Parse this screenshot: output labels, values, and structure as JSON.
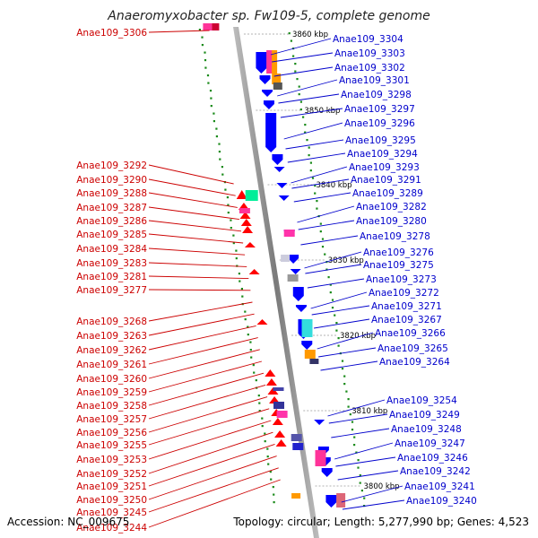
{
  "title": "Anaeromyxobacter sp. Fw109-5, complete genome",
  "footer": {
    "accession": "Accession: NC_009675",
    "summary": "Topology: circular; Length: 5,277,990 bp; Genes: 4,523"
  },
  "scale_labels": [
    "3860 kbp",
    "3850 kbp",
    "3840 kbp",
    "3830 kbp",
    "3820 kbp",
    "3810 kbp",
    "3800 kbp"
  ],
  "left_genes": [
    "Anae109_3306",
    "Anae109_3292",
    "Anae109_3290",
    "Anae109_3288",
    "Anae109_3287",
    "Anae109_3286",
    "Anae109_3285",
    "Anae109_3284",
    "Anae109_3283",
    "Anae109_3281",
    "Anae109_3277",
    "Anae109_3268",
    "Anae109_3263",
    "Anae109_3262",
    "Anae109_3261",
    "Anae109_3260",
    "Anae109_3259",
    "Anae109_3258",
    "Anae109_3257",
    "Anae109_3256",
    "Anae109_3255",
    "Anae109_3253",
    "Anae109_3252",
    "Anae109_3251",
    "Anae109_3250",
    "Anae109_3245",
    "Anae109_3244"
  ],
  "right_genes": [
    "Anae109_3304",
    "Anae109_3303",
    "Anae109_3302",
    "Anae109_3301",
    "Anae109_3298",
    "Anae109_3297",
    "Anae109_3296",
    "Anae109_3295",
    "Anae109_3294",
    "Anae109_3293",
    "Anae109_3291",
    "Anae109_3289",
    "Anae109_3282",
    "Anae109_3280",
    "Anae109_3278",
    "Anae109_3276",
    "Anae109_3275",
    "Anae109_3273",
    "Anae109_3272",
    "Anae109_3271",
    "Anae109_3267",
    "Anae109_3266",
    "Anae109_3265",
    "Anae109_3264",
    "Anae109_3254",
    "Anae109_3249",
    "Anae109_3248",
    "Anae109_3247",
    "Anae109_3246",
    "Anae109_3242",
    "Anae109_3241",
    "Anae109_3240"
  ],
  "colors": {
    "left_label": "#cc0000",
    "right_label": "#0000cc",
    "forward_gene": "#ff0000",
    "reverse_gene": "#0000ff",
    "gc_skew": "#1a8a1a",
    "backbone": "#888888"
  }
}
